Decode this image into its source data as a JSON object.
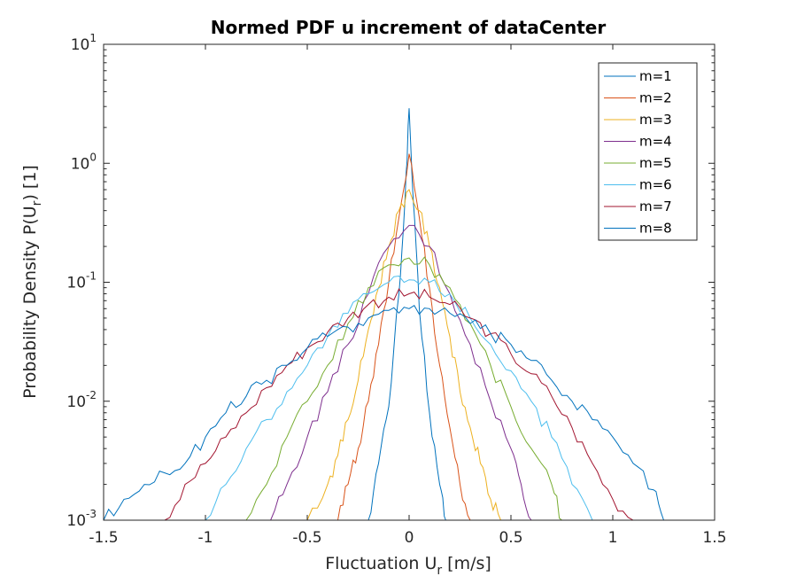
{
  "chart_data": {
    "type": "line",
    "title": "Normed PDF u increment of dataCenter",
    "xlabel": {
      "main": "Fluctuation U",
      "sub": "r",
      "rest": " [m/s]"
    },
    "ylabel": {
      "main": "Probability Density P(U",
      "sub": "r",
      "rest": ") [1]"
    },
    "xlim": [
      -1.5,
      1.5
    ],
    "ylim": [
      0.001,
      10
    ],
    "yscale": "log",
    "grid": false,
    "legend_position": "top-right",
    "x_ticks": [
      "-1.5",
      "-1",
      "-0.5",
      "0",
      "0.5",
      "1",
      "1.5"
    ],
    "y_ticks": [
      {
        "base": "10",
        "exp": "1"
      },
      {
        "base": "10",
        "exp": "0"
      },
      {
        "base": "10",
        "exp": "-1"
      },
      {
        "base": "10",
        "exp": "-2"
      },
      {
        "base": "10",
        "exp": "-3"
      }
    ],
    "series": [
      {
        "name": "m=1",
        "color": "#0072BD",
        "points": [
          [
            -0.2,
            0.001
          ],
          [
            -0.15,
            0.003
          ],
          [
            -0.1,
            0.009
          ],
          [
            -0.05,
            0.08
          ],
          [
            -0.02,
            0.5
          ],
          [
            0,
            2.9
          ],
          [
            0.02,
            0.5
          ],
          [
            0.05,
            0.06
          ],
          [
            0.1,
            0.008
          ],
          [
            0.15,
            0.002
          ],
          [
            0.18,
            0.001
          ]
        ]
      },
      {
        "name": "m=2",
        "color": "#D95319",
        "points": [
          [
            -0.35,
            0.001
          ],
          [
            -0.3,
            0.002
          ],
          [
            -0.25,
            0.004
          ],
          [
            -0.2,
            0.01
          ],
          [
            -0.15,
            0.03
          ],
          [
            -0.1,
            0.1
          ],
          [
            -0.05,
            0.35
          ],
          [
            0,
            1.2
          ],
          [
            0.05,
            0.35
          ],
          [
            0.1,
            0.09
          ],
          [
            0.15,
            0.02
          ],
          [
            0.2,
            0.006
          ],
          [
            0.25,
            0.002
          ],
          [
            0.3,
            0.001
          ]
        ]
      },
      {
        "name": "m=3",
        "color": "#EDB120",
        "points": [
          [
            -0.5,
            0.001
          ],
          [
            -0.4,
            0.002
          ],
          [
            -0.35,
            0.0035
          ],
          [
            -0.3,
            0.007
          ],
          [
            -0.25,
            0.015
          ],
          [
            -0.2,
            0.04
          ],
          [
            -0.15,
            0.09
          ],
          [
            -0.1,
            0.2
          ],
          [
            -0.05,
            0.4
          ],
          [
            0,
            0.6
          ],
          [
            0.05,
            0.4
          ],
          [
            0.1,
            0.2
          ],
          [
            0.15,
            0.09
          ],
          [
            0.2,
            0.035
          ],
          [
            0.25,
            0.012
          ],
          [
            0.3,
            0.006
          ],
          [
            0.35,
            0.003
          ],
          [
            0.4,
            0.0015
          ],
          [
            0.45,
            0.001
          ]
        ]
      },
      {
        "name": "m=4",
        "color": "#7E2F8E",
        "points": [
          [
            -0.68,
            0.001
          ],
          [
            -0.6,
            0.002
          ],
          [
            -0.5,
            0.005
          ],
          [
            -0.4,
            0.012
          ],
          [
            -0.3,
            0.03
          ],
          [
            -0.2,
            0.08
          ],
          [
            -0.1,
            0.2
          ],
          [
            0,
            0.3
          ],
          [
            0.1,
            0.2
          ],
          [
            0.2,
            0.08
          ],
          [
            0.3,
            0.03
          ],
          [
            0.4,
            0.01
          ],
          [
            0.5,
            0.004
          ],
          [
            0.55,
            0.002
          ],
          [
            0.6,
            0.001
          ]
        ]
      },
      {
        "name": "m=5",
        "color": "#77AC30",
        "points": [
          [
            -0.8,
            0.001
          ],
          [
            -0.7,
            0.002
          ],
          [
            -0.6,
            0.005
          ],
          [
            -0.5,
            0.01
          ],
          [
            -0.4,
            0.02
          ],
          [
            -0.3,
            0.045
          ],
          [
            -0.2,
            0.09
          ],
          [
            -0.1,
            0.14
          ],
          [
            0,
            0.16
          ],
          [
            0.1,
            0.14
          ],
          [
            0.2,
            0.09
          ],
          [
            0.3,
            0.045
          ],
          [
            0.4,
            0.02
          ],
          [
            0.5,
            0.009
          ],
          [
            0.6,
            0.004
          ],
          [
            0.7,
            0.002
          ],
          [
            0.75,
            0.001
          ]
        ]
      },
      {
        "name": "m=6",
        "color": "#4DBEEE",
        "points": [
          [
            -1.0,
            0.001
          ],
          [
            -0.9,
            0.002
          ],
          [
            -0.8,
            0.004
          ],
          [
            -0.7,
            0.007
          ],
          [
            -0.6,
            0.012
          ],
          [
            -0.5,
            0.02
          ],
          [
            -0.4,
            0.035
          ],
          [
            -0.3,
            0.055
          ],
          [
            -0.2,
            0.08
          ],
          [
            -0.1,
            0.1
          ],
          [
            0,
            0.105
          ],
          [
            0.1,
            0.1
          ],
          [
            0.2,
            0.08
          ],
          [
            0.3,
            0.05
          ],
          [
            0.4,
            0.03
          ],
          [
            0.5,
            0.018
          ],
          [
            0.6,
            0.01
          ],
          [
            0.7,
            0.005
          ],
          [
            0.8,
            0.002
          ],
          [
            0.9,
            0.001
          ]
        ]
      },
      {
        "name": "m=7",
        "color": "#A2142F",
        "points": [
          [
            -1.2,
            0.001
          ],
          [
            -1.1,
            0.002
          ],
          [
            -1.0,
            0.003
          ],
          [
            -0.9,
            0.005
          ],
          [
            -0.8,
            0.008
          ],
          [
            -0.7,
            0.013
          ],
          [
            -0.6,
            0.02
          ],
          [
            -0.5,
            0.028
          ],
          [
            -0.4,
            0.038
          ],
          [
            -0.3,
            0.05
          ],
          [
            -0.2,
            0.065
          ],
          [
            -0.1,
            0.075
          ],
          [
            0,
            0.08
          ],
          [
            0.1,
            0.075
          ],
          [
            0.2,
            0.065
          ],
          [
            0.3,
            0.05
          ],
          [
            0.4,
            0.037
          ],
          [
            0.5,
            0.025
          ],
          [
            0.6,
            0.017
          ],
          [
            0.7,
            0.011
          ],
          [
            0.8,
            0.006
          ],
          [
            0.9,
            0.003
          ],
          [
            1.0,
            0.0015
          ],
          [
            1.1,
            0.001
          ]
        ]
      },
      {
        "name": "m=8",
        "color": "#0072BD",
        "points": [
          [
            -1.5,
            0.001
          ],
          [
            -1.4,
            0.0015
          ],
          [
            -1.3,
            0.002
          ],
          [
            -1.2,
            0.0025
          ],
          [
            -1.1,
            0.003
          ],
          [
            -1.0,
            0.005
          ],
          [
            -0.9,
            0.008
          ],
          [
            -0.8,
            0.011
          ],
          [
            -0.7,
            0.015
          ],
          [
            -0.6,
            0.02
          ],
          [
            -0.5,
            0.028
          ],
          [
            -0.4,
            0.035
          ],
          [
            -0.3,
            0.042
          ],
          [
            -0.2,
            0.05
          ],
          [
            -0.1,
            0.058
          ],
          [
            0,
            0.06
          ],
          [
            0.1,
            0.06
          ],
          [
            0.2,
            0.055
          ],
          [
            0.3,
            0.045
          ],
          [
            0.4,
            0.037
          ],
          [
            0.5,
            0.03
          ],
          [
            0.6,
            0.022
          ],
          [
            0.7,
            0.015
          ],
          [
            0.8,
            0.01
          ],
          [
            0.9,
            0.007
          ],
          [
            1.0,
            0.005
          ],
          [
            1.1,
            0.003
          ],
          [
            1.2,
            0.0018
          ],
          [
            1.25,
            0.001
          ]
        ]
      }
    ]
  }
}
